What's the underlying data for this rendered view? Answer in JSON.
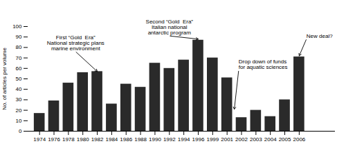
{
  "chart_data": {
    "type": "bar",
    "categories": [
      "1974",
      "1976",
      "1978",
      "1980",
      "1982",
      "1984",
      "1986",
      "1988",
      "1990",
      "1992",
      "1994",
      "1996",
      "1999",
      "2001",
      "2002",
      "2003",
      "2004",
      "2005",
      "2006"
    ],
    "values": [
      17,
      29,
      46,
      56,
      57,
      26,
      45,
      42,
      65,
      60,
      68,
      87,
      70,
      51,
      13,
      20,
      14,
      30,
      71
    ],
    "color": "#2a2a2a",
    "ylabel": "No. of articles per volume",
    "ylim": [
      0,
      100
    ],
    "yticks": [
      0,
      10,
      20,
      30,
      40,
      50,
      60,
      70,
      80,
      90,
      100
    ],
    "annotations": [
      {
        "text": "First “Gold  Era”\nNational strategic plans\nmarine environment",
        "xy": [
          4,
          57
        ],
        "xytext": [
          2.5,
          76
        ]
      },
      {
        "text": "Second “Gold  Era”\nItalian national\nantarctic program",
        "xy": [
          11,
          88
        ],
        "xytext": [
          9.0,
          91
        ]
      },
      {
        "text": "Drop down of funds\nfor aquatic sciences",
        "xy": [
          13.5,
          21
        ],
        "xytext": [
          13.8,
          58
        ]
      },
      {
        "text": "New deal?",
        "xy": [
          18,
          72
        ],
        "xytext": [
          18.5,
          88
        ]
      }
    ]
  }
}
